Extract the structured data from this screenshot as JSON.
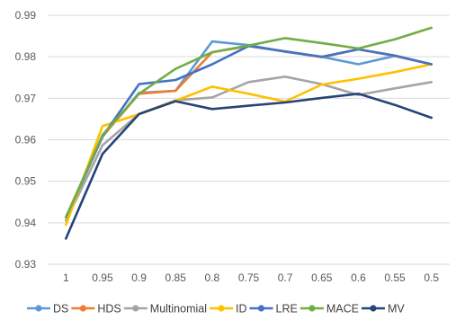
{
  "chart_data": {
    "type": "line",
    "title": "",
    "xlabel": "",
    "ylabel": "",
    "categories": [
      "1",
      "0.95",
      "0.9",
      "0.85",
      "0.8",
      "0.75",
      "0.7",
      "0.65",
      "0.6",
      "0.55",
      "0.5"
    ],
    "y_ticks": [
      "0.93",
      "0.94",
      "0.95",
      "0.96",
      "0.97",
      "0.98",
      "0.99"
    ],
    "ylim": [
      0.93,
      0.99
    ],
    "grid": true,
    "legend_position": "bottom",
    "series": [
      {
        "name": "DS",
        "color": "#5b9bd5",
        "values": [
          0.9413,
          0.9608,
          0.9713,
          0.9718,
          0.9837,
          0.9828,
          0.9812,
          0.98,
          0.9782,
          0.9802,
          0.9782
        ]
      },
      {
        "name": "HDS",
        "color": "#ed7d31",
        "values": [
          0.9413,
          0.9608,
          0.9711,
          0.9718,
          0.9811,
          0.9826,
          0.9813,
          0.9799,
          0.9818,
          0.9802,
          0.9782
        ]
      },
      {
        "name": "Multinomial",
        "color": "#a5a5a5",
        "values": [
          0.9405,
          0.9587,
          0.9662,
          0.9695,
          0.9702,
          0.9739,
          0.9752,
          0.9734,
          0.9708,
          0.9724,
          0.9739
        ]
      },
      {
        "name": "ID",
        "color": "#ffc000",
        "values": [
          0.9395,
          0.9633,
          0.9662,
          0.9694,
          0.9728,
          0.9711,
          0.9692,
          0.9733,
          0.9747,
          0.9763,
          0.9782
        ]
      },
      {
        "name": "LRE",
        "color": "#4472c4",
        "values": [
          0.9413,
          0.9608,
          0.9734,
          0.9744,
          0.9782,
          0.9826,
          0.9813,
          0.98,
          0.9818,
          0.9803,
          0.9782
        ]
      },
      {
        "name": "MACE",
        "color": "#70ad47",
        "values": [
          0.9413,
          0.9612,
          0.9711,
          0.9771,
          0.9811,
          0.9827,
          0.9845,
          0.9833,
          0.982,
          0.9842,
          0.987
        ]
      },
      {
        "name": "MV",
        "color": "#264478",
        "values": [
          0.9362,
          0.9566,
          0.9662,
          0.9693,
          0.9674,
          0.9682,
          0.969,
          0.9701,
          0.9711,
          0.9684,
          0.9653
        ]
      }
    ]
  }
}
